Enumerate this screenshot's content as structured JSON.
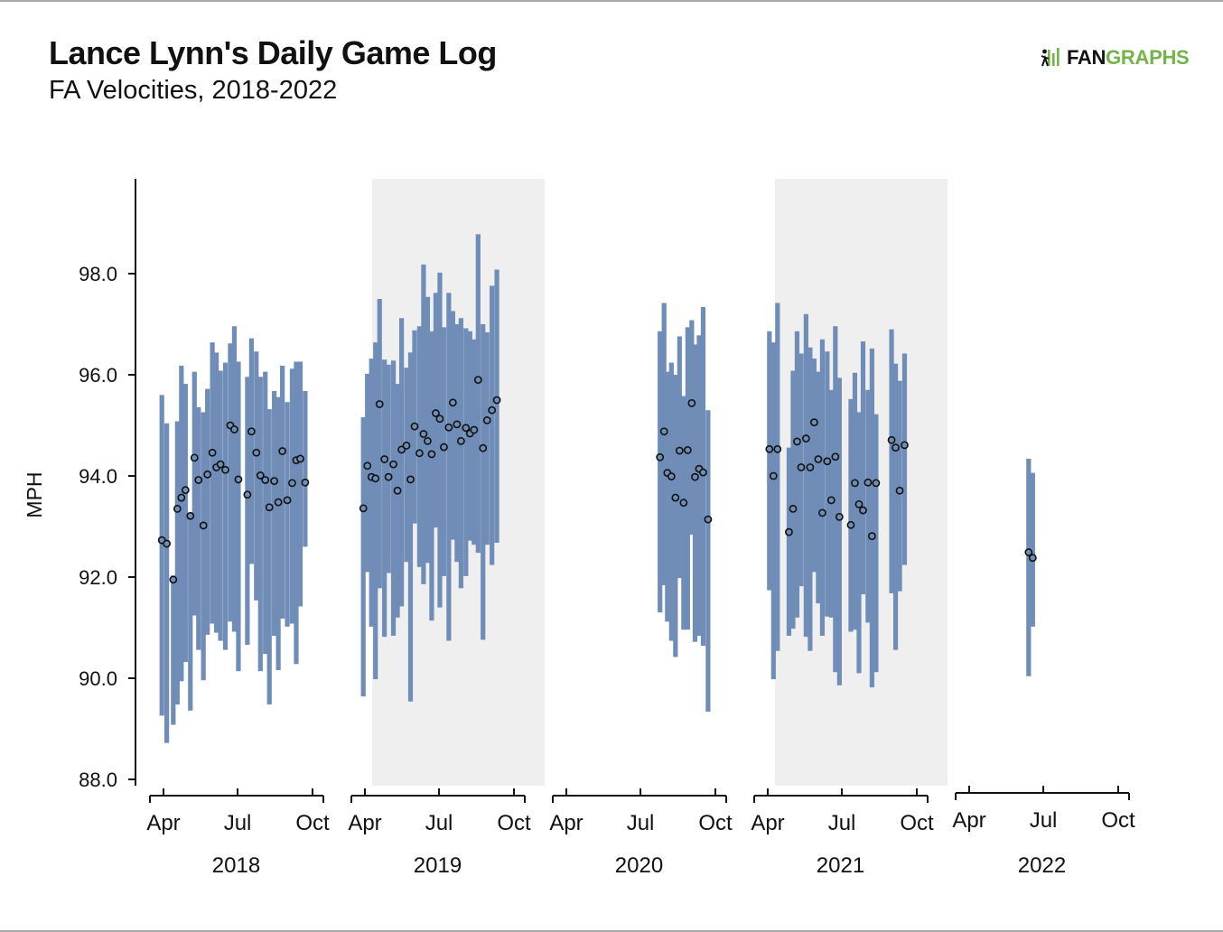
{
  "header": {
    "title": "Lance Lynn's Daily Game Log",
    "subtitle": "FA Velocities, 2018-2022",
    "logo_fan": "FAN",
    "logo_graphs": "GRAPHS"
  },
  "colors": {
    "bar": "#6f8db7",
    "shade": "#efefef",
    "point_fill": "#6f8db7",
    "point_stroke": "#111111",
    "logo_green": "#73b348"
  },
  "icons": [
    "fangraphs-logo-icon"
  ],
  "chart_data": {
    "type": "scatter",
    "title": "Lance Lynn's Daily Game Log",
    "subtitle": "FA Velocities, 2018-2022",
    "ylabel": "MPH",
    "ylim": [
      88,
      99.5
    ],
    "yticks": [
      88.0,
      90.0,
      92.0,
      94.0,
      96.0,
      98.0
    ],
    "ytick_labels": [
      "88.0",
      "90.0",
      "92.0",
      "94.0",
      "96.0",
      "98.0"
    ],
    "month_labels": [
      "Apr",
      "Jul",
      "Oct"
    ],
    "shaded_years": [
      "2019",
      "2021"
    ],
    "series_description": "Each game: dot = average velocity, bar = min-max range",
    "panels": [
      {
        "year": "2018",
        "games": [
          {
            "date": "2018-03-30",
            "avg": 92.73,
            "min": 89.26,
            "max": 95.6
          },
          {
            "date": "2018-04-05",
            "avg": 92.66,
            "min": 88.72,
            "max": 95.04
          },
          {
            "date": "2018-04-13",
            "avg": 91.95,
            "min": 89.08,
            "max": 92.03
          },
          {
            "date": "2018-04-18",
            "avg": 93.35,
            "min": 89.48,
            "max": 95.08
          },
          {
            "date": "2018-04-23",
            "avg": 93.57,
            "min": 89.94,
            "max": 96.18
          },
          {
            "date": "2018-04-28",
            "avg": 93.72,
            "min": 90.32,
            "max": 95.82
          },
          {
            "date": "2018-05-04",
            "avg": 93.21,
            "min": 89.36,
            "max": 93.18
          },
          {
            "date": "2018-05-09",
            "avg": 94.36,
            "min": 91.24,
            "max": 96.06
          },
          {
            "date": "2018-05-14",
            "avg": 93.92,
            "min": 90.56,
            "max": 95.36
          },
          {
            "date": "2018-05-20",
            "avg": 93.02,
            "min": 89.96,
            "max": 95.26
          },
          {
            "date": "2018-05-25",
            "avg": 94.03,
            "min": 90.86,
            "max": 95.72
          },
          {
            "date": "2018-05-31",
            "avg": 94.46,
            "min": 91.08,
            "max": 96.64
          },
          {
            "date": "2018-06-05",
            "avg": 94.17,
            "min": 90.9,
            "max": 96.44
          },
          {
            "date": "2018-06-10",
            "avg": 94.23,
            "min": 90.74,
            "max": 96.08
          },
          {
            "date": "2018-06-16",
            "avg": 94.12,
            "min": 90.56,
            "max": 96.24
          },
          {
            "date": "2018-06-22",
            "avg": 95.0,
            "min": 91.12,
            "max": 96.62
          },
          {
            "date": "2018-06-27",
            "avg": 94.92,
            "min": 90.92,
            "max": 96.96
          },
          {
            "date": "2018-07-02",
            "avg": 93.93,
            "min": 90.14,
            "max": 96.26
          },
          {
            "date": "2018-07-13",
            "avg": 93.63,
            "min": 90.66,
            "max": 95.96
          },
          {
            "date": "2018-07-18",
            "avg": 94.88,
            "min": 92.26,
            "max": 96.72
          },
          {
            "date": "2018-07-24",
            "avg": 94.46,
            "min": 91.54,
            "max": 96.46
          },
          {
            "date": "2018-07-29",
            "avg": 94.01,
            "min": 90.14,
            "max": 95.96
          },
          {
            "date": "2018-08-04",
            "avg": 93.92,
            "min": 90.48,
            "max": 96.06
          },
          {
            "date": "2018-08-09",
            "avg": 93.38,
            "min": 89.48,
            "max": 95.32
          },
          {
            "date": "2018-08-15",
            "avg": 93.9,
            "min": 90.84,
            "max": 95.68
          },
          {
            "date": "2018-08-20",
            "avg": 93.48,
            "min": 90.16,
            "max": 95.56
          },
          {
            "date": "2018-08-25",
            "avg": 94.49,
            "min": 91.18,
            "max": 96.18
          },
          {
            "date": "2018-08-31",
            "avg": 93.52,
            "min": 91.02,
            "max": 95.46
          },
          {
            "date": "2018-09-06",
            "avg": 93.86,
            "min": 91.08,
            "max": 96.12
          },
          {
            "date": "2018-09-11",
            "avg": 94.31,
            "min": 90.28,
            "max": 96.26
          },
          {
            "date": "2018-09-16",
            "avg": 94.34,
            "min": 91.42,
            "max": 96.26
          },
          {
            "date": "2018-09-22",
            "avg": 93.87,
            "min": 92.6,
            "max": 95.68
          }
        ]
      },
      {
        "year": "2019",
        "games": [
          {
            "date": "2019-03-30",
            "avg": 93.36,
            "min": 89.64,
            "max": 95.16
          },
          {
            "date": "2019-04-04",
            "avg": 94.2,
            "min": 92.1,
            "max": 96.02
          },
          {
            "date": "2019-04-09",
            "avg": 93.98,
            "min": 91.02,
            "max": 96.32
          },
          {
            "date": "2019-04-14",
            "avg": 93.95,
            "min": 89.98,
            "max": 96.64
          },
          {
            "date": "2019-04-19",
            "avg": 95.42,
            "min": 91.78,
            "max": 97.5
          },
          {
            "date": "2019-04-25",
            "avg": 94.33,
            "min": 90.82,
            "max": 96.3
          },
          {
            "date": "2019-04-30",
            "avg": 93.98,
            "min": 92.08,
            "max": 96.2
          },
          {
            "date": "2019-05-06",
            "avg": 94.23,
            "min": 90.84,
            "max": 96.28
          },
          {
            "date": "2019-05-11",
            "avg": 93.71,
            "min": 91.2,
            "max": 95.82
          },
          {
            "date": "2019-05-16",
            "avg": 94.52,
            "min": 91.42,
            "max": 97.12
          },
          {
            "date": "2019-05-22",
            "avg": 94.6,
            "min": 92.3,
            "max": 96.14
          },
          {
            "date": "2019-05-27",
            "avg": 93.93,
            "min": 89.54,
            "max": 96.44
          },
          {
            "date": "2019-06-01",
            "avg": 94.98,
            "min": 93.06,
            "max": 96.88
          },
          {
            "date": "2019-06-07",
            "avg": 94.45,
            "min": 92.2,
            "max": 96.96
          },
          {
            "date": "2019-06-12",
            "avg": 94.83,
            "min": 91.86,
            "max": 98.18
          },
          {
            "date": "2019-06-17",
            "avg": 94.69,
            "min": 92.28,
            "max": 97.54
          },
          {
            "date": "2019-06-22",
            "avg": 94.43,
            "min": 91.14,
            "max": 96.86
          },
          {
            "date": "2019-06-27",
            "avg": 95.24,
            "min": 92.98,
            "max": 97.62
          },
          {
            "date": "2019-07-02",
            "avg": 95.13,
            "min": 91.4,
            "max": 98.02
          },
          {
            "date": "2019-07-07",
            "avg": 94.57,
            "min": 92.02,
            "max": 96.94
          },
          {
            "date": "2019-07-13",
            "avg": 94.96,
            "min": 90.74,
            "max": 97.62
          },
          {
            "date": "2019-07-18",
            "avg": 95.45,
            "min": 92.74,
            "max": 97.26
          },
          {
            "date": "2019-07-23",
            "avg": 95.02,
            "min": 92.3,
            "max": 97.0
          },
          {
            "date": "2019-07-28",
            "avg": 94.69,
            "min": 91.78,
            "max": 97.12
          },
          {
            "date": "2019-08-03",
            "avg": 94.95,
            "min": 92.02,
            "max": 96.92
          },
          {
            "date": "2019-08-08",
            "avg": 94.84,
            "min": 92.72,
            "max": 96.86
          },
          {
            "date": "2019-08-13",
            "avg": 94.91,
            "min": 92.64,
            "max": 96.7
          },
          {
            "date": "2019-08-18",
            "avg": 95.9,
            "min": 92.48,
            "max": 98.78
          },
          {
            "date": "2019-08-24",
            "avg": 94.55,
            "min": 90.76,
            "max": 97.0
          },
          {
            "date": "2019-08-29",
            "avg": 95.1,
            "min": 92.64,
            "max": 96.84
          },
          {
            "date": "2019-09-04",
            "avg": 95.3,
            "min": 92.24,
            "max": 97.76
          },
          {
            "date": "2019-09-10",
            "avg": 95.5,
            "min": 92.68,
            "max": 98.08
          }
        ]
      },
      {
        "year": "2020",
        "games": [
          {
            "date": "2020-07-24",
            "avg": 94.37,
            "min": 91.3,
            "max": 96.86
          },
          {
            "date": "2020-07-29",
            "avg": 94.88,
            "min": 91.84,
            "max": 97.42
          },
          {
            "date": "2020-08-02",
            "avg": 94.06,
            "min": 91.12,
            "max": 96.06
          },
          {
            "date": "2020-08-07",
            "avg": 93.99,
            "min": 90.74,
            "max": 96.24
          },
          {
            "date": "2020-08-12",
            "avg": 93.57,
            "min": 90.42,
            "max": 96.0
          },
          {
            "date": "2020-08-17",
            "avg": 94.5,
            "min": 91.98,
            "max": 96.76
          },
          {
            "date": "2020-08-22",
            "avg": 93.47,
            "min": 90.96,
            "max": 95.58
          },
          {
            "date": "2020-08-27",
            "avg": 94.51,
            "min": 90.96,
            "max": 96.94
          },
          {
            "date": "2020-09-01",
            "avg": 95.44,
            "min": 92.84,
            "max": 97.08
          },
          {
            "date": "2020-09-05",
            "avg": 93.98,
            "min": 90.72,
            "max": 96.6
          },
          {
            "date": "2020-09-10",
            "avg": 94.14,
            "min": 90.84,
            "max": 96.78
          },
          {
            "date": "2020-09-15",
            "avg": 94.07,
            "min": 90.64,
            "max": 97.34
          },
          {
            "date": "2020-09-21",
            "avg": 93.14,
            "min": 89.34,
            "max": 95.3
          }
        ]
      },
      {
        "year": "2021",
        "games": [
          {
            "date": "2021-04-03",
            "avg": 94.53,
            "min": 91.74,
            "max": 96.86
          },
          {
            "date": "2021-04-08",
            "avg": 94.0,
            "min": 89.98,
            "max": 96.64
          },
          {
            "date": "2021-04-13",
            "avg": 94.53,
            "min": 90.54,
            "max": 97.42
          },
          {
            "date": "2021-04-27",
            "avg": 92.89,
            "min": 90.84,
            "max": 94.56
          },
          {
            "date": "2021-05-02",
            "avg": 93.35,
            "min": 90.98,
            "max": 96.08
          },
          {
            "date": "2021-05-07",
            "avg": 94.68,
            "min": 91.2,
            "max": 96.86
          },
          {
            "date": "2021-05-12",
            "avg": 94.17,
            "min": 91.82,
            "max": 96.42
          },
          {
            "date": "2021-05-18",
            "avg": 94.74,
            "min": 90.82,
            "max": 97.2
          },
          {
            "date": "2021-05-23",
            "avg": 94.17,
            "min": 90.54,
            "max": 96.54
          },
          {
            "date": "2021-05-28",
            "avg": 95.06,
            "min": 92.1,
            "max": 96.32
          },
          {
            "date": "2021-06-02",
            "avg": 94.33,
            "min": 91.48,
            "max": 96.06
          },
          {
            "date": "2021-06-07",
            "avg": 93.27,
            "min": 90.84,
            "max": 96.7
          },
          {
            "date": "2021-06-13",
            "avg": 94.29,
            "min": 91.22,
            "max": 96.46
          },
          {
            "date": "2021-06-18",
            "avg": 93.52,
            "min": 91.2,
            "max": 95.7
          },
          {
            "date": "2021-06-23",
            "avg": 94.38,
            "min": 90.12,
            "max": 96.96
          },
          {
            "date": "2021-06-28",
            "avg": 93.19,
            "min": 89.86,
            "max": 95.94
          },
          {
            "date": "2021-07-12",
            "avg": 93.03,
            "min": 90.92,
            "max": 95.52
          },
          {
            "date": "2021-07-17",
            "avg": 93.86,
            "min": 90.96,
            "max": 96.04
          },
          {
            "date": "2021-07-22",
            "avg": 93.44,
            "min": 90.1,
            "max": 95.26
          },
          {
            "date": "2021-07-27",
            "avg": 93.32,
            "min": 91.66,
            "max": 96.66
          },
          {
            "date": "2021-08-02",
            "avg": 93.87,
            "min": 91.1,
            "max": 95.7
          },
          {
            "date": "2021-08-07",
            "avg": 92.81,
            "min": 89.82,
            "max": 96.52
          },
          {
            "date": "2021-08-12",
            "avg": 93.86,
            "min": 90.12,
            "max": 95.22
          },
          {
            "date": "2021-08-31",
            "avg": 94.71,
            "min": 91.68,
            "max": 96.9
          },
          {
            "date": "2021-09-05",
            "avg": 94.56,
            "min": 90.56,
            "max": 96.22
          },
          {
            "date": "2021-09-10",
            "avg": 93.71,
            "min": 91.72,
            "max": 95.88
          },
          {
            "date": "2021-09-16",
            "avg": 94.61,
            "min": 92.24,
            "max": 96.42
          }
        ]
      },
      {
        "year": "2022",
        "games": [
          {
            "date": "2022-06-13",
            "avg": 92.49,
            "min": 90.04,
            "max": 94.34
          },
          {
            "date": "2022-06-18",
            "avg": 92.38,
            "min": 91.02,
            "max": 94.06
          }
        ]
      }
    ]
  }
}
